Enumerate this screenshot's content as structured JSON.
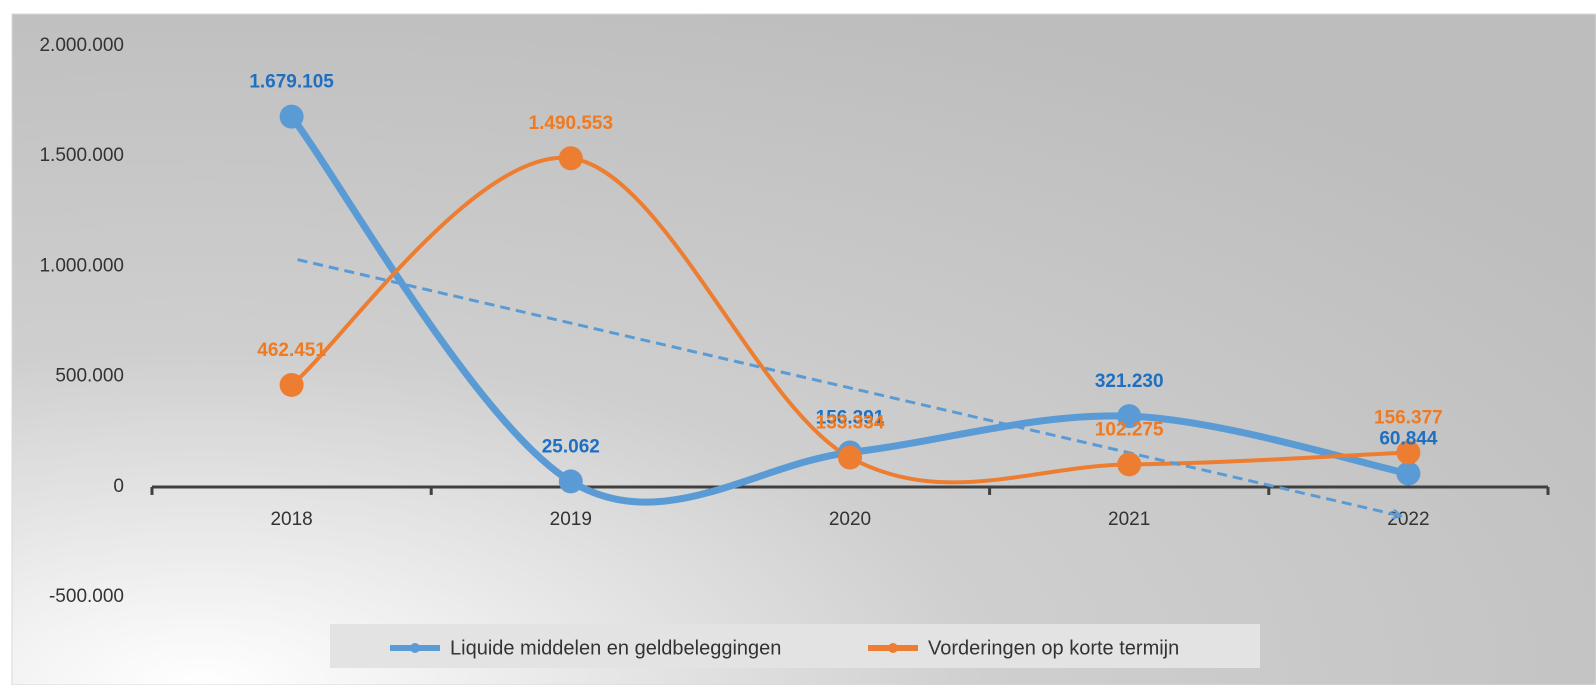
{
  "chart_data": {
    "type": "line",
    "categories": [
      "2018",
      "2019",
      "2020",
      "2021",
      "2022"
    ],
    "series": [
      {
        "name": "Liquide middelen en geldbeleggingen",
        "color": "#5b9bd5",
        "label_color": "#1f6fc0",
        "values": [
          1679105,
          25062,
          156391,
          321230,
          60844
        ],
        "value_labels": [
          "1.679.105",
          "25.062",
          "156.391",
          "321.230",
          "60.844"
        ]
      },
      {
        "name": "Vorderingen op korte termijn",
        "color": "#ed7d31",
        "label_color": "#f07a20",
        "values": [
          462451,
          1490553,
          133334,
          102275,
          156377
        ],
        "value_labels": [
          "462.451",
          "1.490.553",
          "133.334",
          "102.275",
          "156.377"
        ]
      }
    ],
    "ylim": [
      -830000,
      2140000
    ],
    "yticks": [
      {
        "value": -500000,
        "label": "-500.000"
      },
      0,
      {
        "value": 500000,
        "label": "500.000"
      },
      {
        "value": 1000000,
        "label": "1.000.000"
      },
      {
        "value": 1500000,
        "label": "1.500.000"
      },
      {
        "value": 2000000,
        "label": "2.000.000"
      }
    ],
    "smooth": true,
    "trendline": true,
    "legend": "bottom"
  }
}
